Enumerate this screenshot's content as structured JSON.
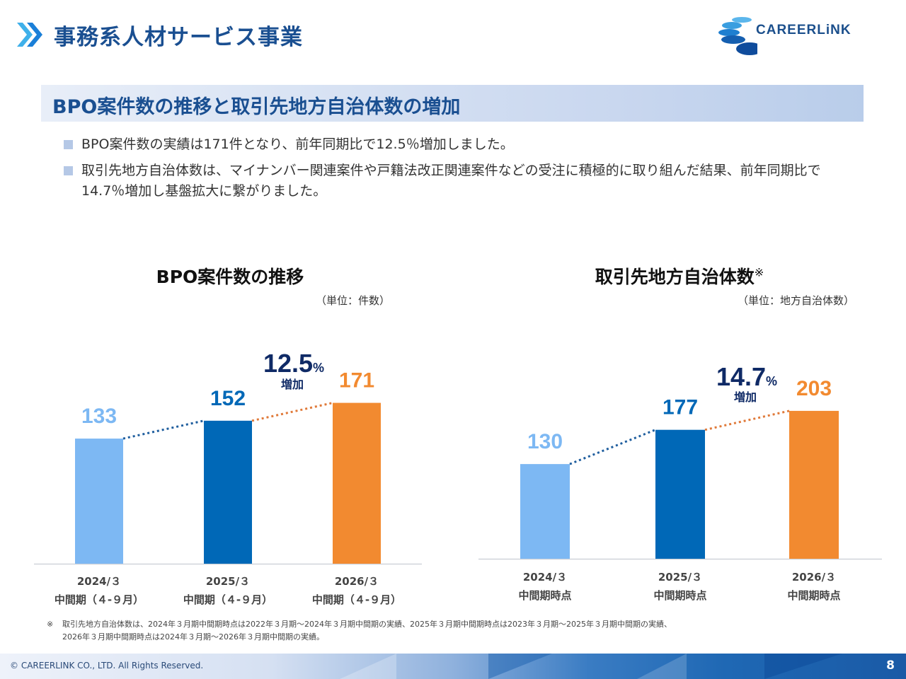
{
  "header": {
    "title": "事務系人材サービス事業",
    "logo_text": "CAREERLiNK",
    "chevron_icon": "double-chevron-right-icon"
  },
  "section": {
    "title": "BPO案件数の推移と取引先地方自治体数の増加"
  },
  "bullets": [
    "BPO案件数の実績は171件となり、前年同期比で12.5％増加しました。",
    "取引先地方自治体数は、マイナンバー関連案件や戸籍法改正関連案件などの受注に積極的に取り組んだ結果、前年同期比で14.7％増加し基盤拡大に繋がりました。"
  ],
  "colors": {
    "brand_blue": "#1a4f91",
    "bar_light": "#7db8f3",
    "bar_mid": "#0068b7",
    "bar_orange": "#f28a30",
    "growth_text": "#0f2a66"
  },
  "chart_data": [
    {
      "type": "bar",
      "title": "BPO案件数の推移",
      "unit_label": "（単位：件数）",
      "categories": [
        "2024/３",
        "2025/３",
        "2026/３"
      ],
      "category_sublabels": [
        "中間期（４-９月）",
        "中間期（４-９月）",
        "中間期（４-９月）"
      ],
      "values": [
        133,
        152,
        171
      ],
      "value_labels": [
        "133",
        "152",
        "171"
      ],
      "growth": {
        "value": "12.5",
        "unit": "%",
        "label": "増加"
      },
      "xlabel": "",
      "ylabel": "",
      "ylim": [
        0,
        200
      ],
      "grid": false,
      "legend": "none"
    },
    {
      "type": "bar",
      "title": "取引先地方自治体数",
      "title_mark": "※",
      "unit_label": "（単位：地方自治体数）",
      "categories": [
        "2024/３",
        "2025/３",
        "2026/３"
      ],
      "category_sublabels": [
        "中間期時点",
        "中間期時点",
        "中間期時点"
      ],
      "values": [
        130,
        177,
        203
      ],
      "value_labels": [
        "130",
        "177",
        "203"
      ],
      "growth": {
        "value": "14.7",
        "unit": "%",
        "label": "増加"
      },
      "xlabel": "",
      "ylabel": "",
      "ylim": [
        0,
        240
      ],
      "grid": false,
      "legend": "none"
    }
  ],
  "footnote": {
    "mark": "※",
    "line1": "取引先地方自治体数は、2024年３月期中間期時点は2022年３月期～2024年３月期中間期の実績、2025年３月期中間期時点は2023年３月期～2025年３月期中間期の実績、",
    "line2": "2026年３月期中間期時点は2024年３月期～2026年３月期中間期の実績。"
  },
  "footer": {
    "copyright": "© CAREERLINK CO., LTD. All Rights Reserved.",
    "page_number": "8"
  }
}
